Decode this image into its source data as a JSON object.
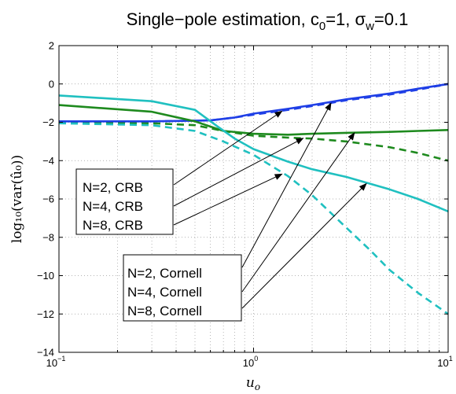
{
  "chart_data": {
    "type": "line",
    "title": {
      "main": "Single−pole estimation, c",
      "c_sub": "0",
      "mid": "=1, σ",
      "sigma_sub": "w",
      "tail": "=0.1"
    },
    "xlabel": {
      "base": "u",
      "sub": "o"
    },
    "ylabel": "log₁₀(var(û₀))",
    "x_scale": "log",
    "xlim": [
      0.1,
      10
    ],
    "ylim": [
      -14,
      2
    ],
    "grid": true,
    "x_ticks": [
      {
        "value": 0.1,
        "base": "10",
        "exp": "−1"
      },
      {
        "value": 1,
        "base": "10",
        "exp": "0"
      },
      {
        "value": 10,
        "base": "10",
        "exp": "1"
      }
    ],
    "y_ticks": [
      {
        "value": 2,
        "label": "2"
      },
      {
        "value": 0,
        "label": "0"
      },
      {
        "value": -2,
        "label": "−2"
      },
      {
        "value": -4,
        "label": "−4"
      },
      {
        "value": -6,
        "label": "−6"
      },
      {
        "value": -8,
        "label": "−8"
      },
      {
        "value": -10,
        "label": "−10"
      },
      {
        "value": -12,
        "label": "−12"
      },
      {
        "value": -14,
        "label": "−14"
      }
    ],
    "series": [
      {
        "key": "n2_crb",
        "color": "#1f3fe6",
        "style": "dashed",
        "x": [
          0.1,
          0.3,
          0.6,
          0.8,
          1.0,
          1.5,
          2.0,
          3.0,
          5.0,
          7.0,
          10.0
        ],
        "y": [
          -1.95,
          -1.95,
          -1.9,
          -1.75,
          -1.6,
          -1.35,
          -1.15,
          -0.85,
          -0.55,
          -0.3,
          0.0
        ]
      },
      {
        "key": "n4_crb",
        "color": "#1e8a1e",
        "style": "dashed",
        "x": [
          0.1,
          0.3,
          0.5,
          0.7,
          1.0,
          1.5,
          2.0,
          3.0,
          5.0,
          7.0,
          10.0
        ],
        "y": [
          -2.0,
          -2.05,
          -2.15,
          -2.45,
          -2.7,
          -2.8,
          -2.85,
          -3.0,
          -3.3,
          -3.6,
          -4.0
        ]
      },
      {
        "key": "n8_crb",
        "color": "#20c0c0",
        "style": "dashed",
        "x": [
          0.1,
          0.3,
          0.5,
          0.7,
          1.0,
          1.5,
          2.0,
          3.0,
          4.0,
          5.0,
          7.0,
          10.0
        ],
        "y": [
          -2.05,
          -2.15,
          -2.45,
          -3.0,
          -3.7,
          -4.8,
          -5.8,
          -7.5,
          -8.7,
          -9.7,
          -10.9,
          -12.0
        ]
      },
      {
        "key": "n2_cornell",
        "color": "#1f3fe6",
        "style": "solid",
        "x": [
          0.1,
          0.3,
          0.6,
          0.8,
          1.0,
          1.5,
          2.0,
          3.0,
          5.0,
          7.0,
          10.0
        ],
        "y": [
          -1.95,
          -1.95,
          -1.9,
          -1.75,
          -1.55,
          -1.3,
          -1.1,
          -0.8,
          -0.5,
          -0.25,
          0.0
        ]
      },
      {
        "key": "n4_cornell",
        "color": "#1e8a1e",
        "style": "solid",
        "x": [
          0.1,
          0.3,
          0.5,
          0.7,
          1.0,
          1.5,
          2.0,
          3.0,
          5.0,
          7.0,
          10.0
        ],
        "y": [
          -1.1,
          -1.45,
          -1.95,
          -2.45,
          -2.6,
          -2.65,
          -2.6,
          -2.55,
          -2.5,
          -2.45,
          -2.4
        ]
      },
      {
        "key": "n8_cornell",
        "color": "#20c0c0",
        "style": "solid",
        "x": [
          0.1,
          0.3,
          0.5,
          0.65,
          0.8,
          1.0,
          1.5,
          2.0,
          3.0,
          5.0,
          7.0,
          10.0
        ],
        "y": [
          -0.6,
          -0.9,
          -1.35,
          -2.2,
          -2.85,
          -3.4,
          -4.05,
          -4.45,
          -4.85,
          -5.5,
          -6.0,
          -6.65
        ]
      }
    ],
    "annotations": [
      {
        "label": "N=2, CRB",
        "box": "crb",
        "target": "n2_crb",
        "target_xy": [
          1.4,
          -1.42
        ]
      },
      {
        "label": "N=4, CRB",
        "box": "crb",
        "target": "n4_crb",
        "target_xy": [
          1.8,
          -2.83
        ]
      },
      {
        "label": "N=8, CRB",
        "box": "crb",
        "target": "n8_crb",
        "target_xy": [
          1.4,
          -4.7
        ]
      },
      {
        "label": "N=2, Cornell",
        "box": "cornell",
        "target": "n2_cornell",
        "target_xy": [
          2.5,
          -1.0
        ]
      },
      {
        "label": "N=4, Cornell",
        "box": "cornell",
        "target": "n4_cornell",
        "target_xy": [
          3.3,
          -2.55
        ]
      },
      {
        "label": "N=8, Cornell",
        "box": "cornell",
        "target": "n8_cornell",
        "target_xy": [
          3.8,
          -5.2
        ]
      }
    ]
  }
}
